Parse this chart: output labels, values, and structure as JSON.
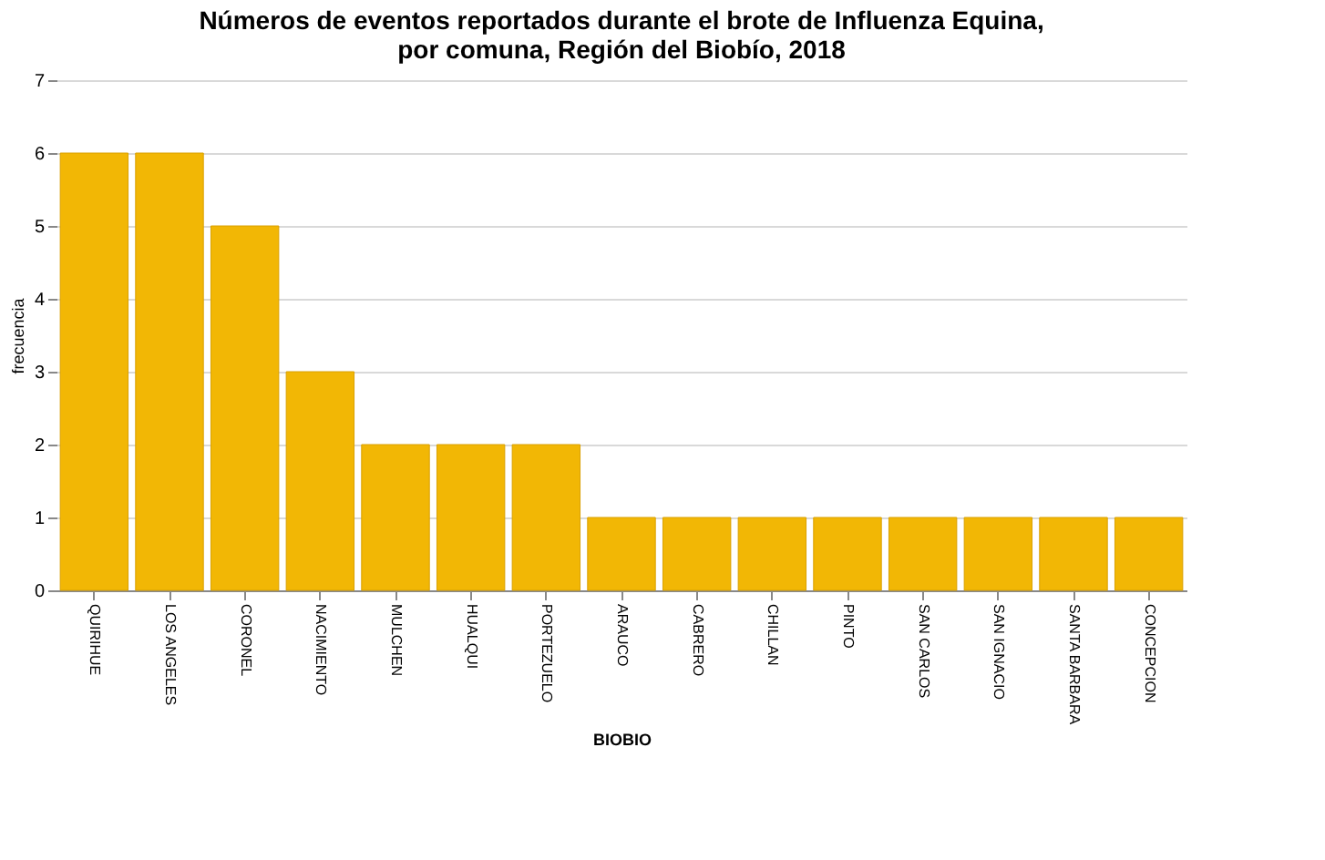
{
  "chart_data": {
    "type": "bar",
    "title": [
      "Números de eventos reportados durante el brote de Influenza Equina,",
      "por comuna, Región del Biobío, 2018"
    ],
    "xlabel": "BIOBIO",
    "ylabel": "frecuencia",
    "categories": [
      "QUIRIHUE",
      "LOS ANGELES",
      "CORONEL",
      "NACIMIENTO",
      "MULCHEN",
      "HUALQUI",
      "PORTEZUELO",
      "ARAUCO",
      "CABRERO",
      "CHILLAN",
      "PINTO",
      "SAN CARLOS",
      "SAN IGNACIO",
      "SANTA BARBARA",
      "CONCEPCION"
    ],
    "values": [
      6,
      6,
      5,
      3,
      2,
      2,
      2,
      1,
      1,
      1,
      1,
      1,
      1,
      1,
      1
    ],
    "color": "#f2b705",
    "ylim": [
      0,
      7
    ],
    "yticks": [
      0,
      1,
      2,
      3,
      4,
      5,
      6,
      7
    ],
    "grid": "y"
  }
}
